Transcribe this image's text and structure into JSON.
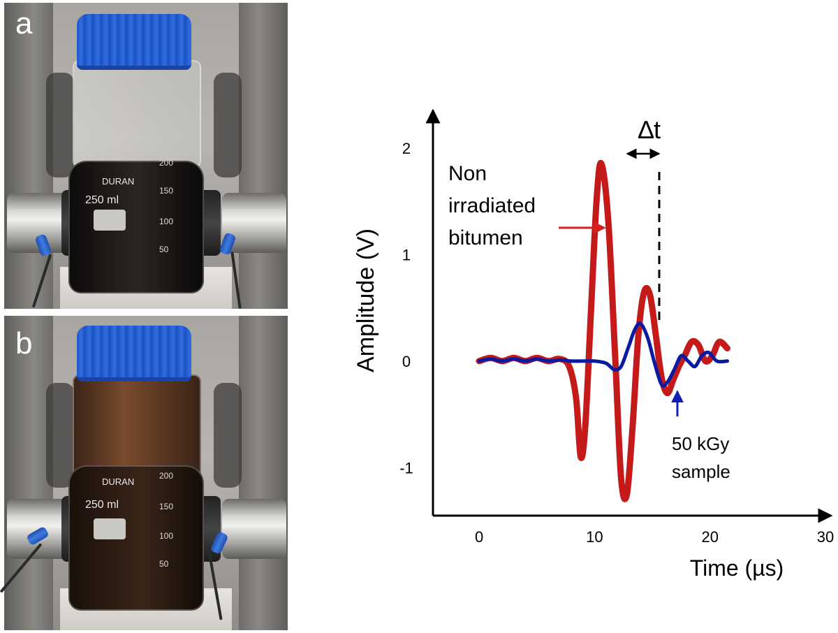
{
  "panels": [
    {
      "letter": "a",
      "bottle": {
        "brand": "DURAN",
        "volume": "250 ml",
        "graduations": [
          "200",
          "150",
          "100",
          "50"
        ]
      },
      "liquid_color": "#141110"
    },
    {
      "letter": "b",
      "bottle": {
        "brand": "DURAN",
        "volume": "250 ml",
        "graduations": [
          "200",
          "150",
          "100",
          "50"
        ]
      },
      "liquid_color": "#2a1a12"
    }
  ],
  "chart_data": {
    "type": "line",
    "xlabel": "Time (µs)",
    "ylabel": "Amplitude (V)",
    "xlim": [
      -4,
      30
    ],
    "ylim": [
      -1.45,
      2.3
    ],
    "x_ticks": [
      "0",
      "10",
      "20",
      "30"
    ],
    "x_tick_values": [
      0,
      10,
      20,
      30
    ],
    "y_ticks": [
      "2",
      "1",
      "0",
      "-1"
    ],
    "y_tick_values": [
      2,
      1,
      0,
      -1
    ],
    "series": [
      {
        "name": "Non irradiated bitumen",
        "color": "#c41a1a",
        "x": [
          0,
          1,
          2,
          3,
          4,
          5,
          6,
          7,
          7.8,
          8.4,
          8.8,
          9.2,
          9.7,
          10.2,
          10.6,
          11.2,
          11.8,
          12.3,
          12.8,
          13.3,
          13.8,
          14.3,
          14.8,
          15.3,
          15.8,
          16.3,
          16.8,
          17.3,
          17.8,
          18.4,
          19.0,
          19.6,
          20.2,
          20.8,
          21.5
        ],
        "values": [
          0.0,
          0.03,
          0.0,
          0.03,
          0.0,
          0.03,
          0.0,
          0.02,
          -0.05,
          -0.35,
          -0.9,
          -0.6,
          0.5,
          1.55,
          1.85,
          1.3,
          0.0,
          -1.1,
          -1.25,
          -0.6,
          0.25,
          0.65,
          0.62,
          0.25,
          -0.15,
          -0.3,
          -0.18,
          -0.05,
          0.05,
          0.18,
          0.15,
          0.0,
          0.05,
          0.18,
          0.12
        ]
      },
      {
        "name": "50 kGy sample",
        "color": "#0a1aa0",
        "x": [
          0,
          1,
          2,
          3,
          4,
          5,
          6,
          7,
          8,
          9,
          10,
          11,
          11.7,
          12.3,
          12.9,
          13.5,
          14.0,
          14.6,
          15.2,
          15.8,
          16.3,
          16.9,
          17.5,
          18.1,
          18.7,
          19.3,
          19.9,
          20.6,
          21.5
        ],
        "values": [
          0.0,
          0.02,
          0.0,
          0.02,
          0.0,
          0.02,
          0.0,
          0.01,
          0.0,
          0.0,
          0.0,
          -0.02,
          -0.08,
          -0.05,
          0.12,
          0.3,
          0.35,
          0.22,
          -0.02,
          -0.22,
          -0.2,
          -0.08,
          0.05,
          0.0,
          -0.05,
          0.05,
          0.08,
          0.0,
          0.0
        ]
      }
    ],
    "annotations": {
      "delta_t": "∆t",
      "red_label": [
        "Non",
        "irradiated",
        "bitumen"
      ],
      "blue_label": [
        "50 kGy",
        "sample"
      ]
    }
  }
}
